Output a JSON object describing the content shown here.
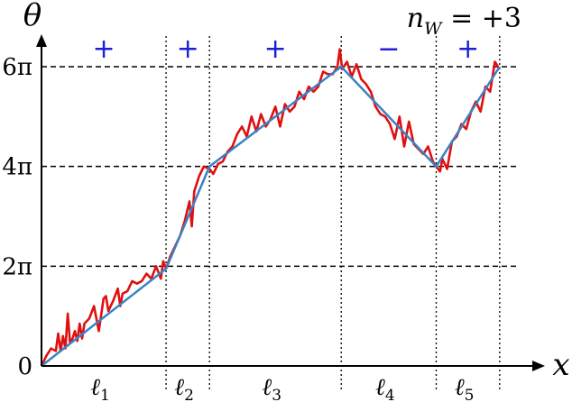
{
  "chart_data": {
    "type": "line",
    "xlabel": "x",
    "ylabel": "θ",
    "winding_label": "n_W = +3",
    "winding": {
      "lhs": "n",
      "sub": "W",
      "rhs": " = +3"
    },
    "y_ticks": [
      {
        "value": 0,
        "label": "0"
      },
      {
        "value": 2,
        "label": "2π"
      },
      {
        "value": 4,
        "label": "4π"
      },
      {
        "value": 6,
        "label": "6π"
      }
    ],
    "y_unit": "π",
    "ylim": [
      0,
      6.6
    ],
    "xlim": [
      0,
      1
    ],
    "boundaries": [
      0.261,
      0.352,
      0.628,
      0.827,
      0.96
    ],
    "segments": [
      {
        "name": "ℓ1",
        "base": "ℓ",
        "sub": "1",
        "sign": "+",
        "start": 0.0,
        "end": 0.261
      },
      {
        "name": "ℓ2",
        "base": "ℓ",
        "sub": "2",
        "sign": "+",
        "start": 0.261,
        "end": 0.352
      },
      {
        "name": "ℓ3",
        "base": "ℓ",
        "sub": "3",
        "sign": "+",
        "start": 0.352,
        "end": 0.628
      },
      {
        "name": "ℓ4",
        "base": "ℓ",
        "sub": "4",
        "sign": "−",
        "start": 0.628,
        "end": 0.827
      },
      {
        "name": "ℓ5",
        "base": "ℓ",
        "sub": "5",
        "sign": "+",
        "start": 0.827,
        "end": 0.96
      }
    ],
    "fit_line": {
      "x": [
        0.0,
        0.261,
        0.352,
        0.628,
        0.827,
        0.96
      ],
      "y": [
        0.0,
        1.95,
        4.0,
        6.0,
        4.0,
        6.0
      ]
    },
    "noisy_line": {
      "x": [
        0.0,
        0.01,
        0.02,
        0.03,
        0.035,
        0.04,
        0.045,
        0.05,
        0.055,
        0.06,
        0.065,
        0.07,
        0.075,
        0.08,
        0.085,
        0.09,
        0.1,
        0.11,
        0.12,
        0.13,
        0.135,
        0.14,
        0.15,
        0.16,
        0.165,
        0.17,
        0.18,
        0.19,
        0.2,
        0.21,
        0.22,
        0.23,
        0.24,
        0.25,
        0.255,
        0.261,
        0.27,
        0.28,
        0.29,
        0.3,
        0.31,
        0.315,
        0.32,
        0.33,
        0.34,
        0.352,
        0.36,
        0.37,
        0.38,
        0.39,
        0.4,
        0.41,
        0.42,
        0.43,
        0.44,
        0.45,
        0.46,
        0.47,
        0.48,
        0.49,
        0.5,
        0.51,
        0.52,
        0.53,
        0.54,
        0.55,
        0.56,
        0.57,
        0.58,
        0.59,
        0.6,
        0.61,
        0.62,
        0.625,
        0.63,
        0.64,
        0.65,
        0.66,
        0.67,
        0.68,
        0.69,
        0.7,
        0.71,
        0.72,
        0.73,
        0.74,
        0.75,
        0.76,
        0.77,
        0.78,
        0.79,
        0.8,
        0.81,
        0.82,
        0.827,
        0.835,
        0.84,
        0.85,
        0.86,
        0.87,
        0.88,
        0.89,
        0.9,
        0.91,
        0.92,
        0.93,
        0.94,
        0.95,
        0.96
      ],
      "y": [
        0.0,
        0.2,
        0.35,
        0.3,
        0.65,
        0.3,
        0.6,
        0.35,
        1.05,
        0.45,
        0.55,
        0.7,
        0.5,
        0.85,
        0.55,
        0.85,
        0.95,
        1.2,
        0.7,
        1.35,
        1.4,
        1.1,
        1.3,
        1.55,
        1.2,
        1.45,
        1.5,
        1.7,
        1.65,
        1.7,
        1.85,
        1.75,
        2.0,
        1.75,
        2.1,
        1.95,
        2.2,
        2.4,
        2.6,
        2.9,
        3.3,
        2.8,
        3.5,
        3.8,
        4.0,
        3.95,
        3.85,
        4.05,
        4.1,
        4.3,
        4.4,
        4.65,
        4.8,
        4.6,
        5.0,
        4.7,
        5.05,
        4.8,
        4.95,
        5.2,
        4.8,
        5.25,
        5.1,
        5.2,
        5.5,
        5.35,
        5.6,
        5.5,
        5.6,
        5.9,
        5.85,
        5.85,
        6.0,
        6.35,
        5.95,
        6.1,
        5.8,
        6.05,
        5.75,
        5.65,
        5.5,
        5.2,
        5.05,
        5.0,
        4.85,
        4.55,
        5.0,
        4.4,
        4.9,
        4.45,
        4.35,
        4.25,
        4.4,
        4.1,
        4.0,
        3.9,
        4.15,
        3.95,
        4.5,
        4.6,
        4.85,
        4.75,
        5.1,
        5.3,
        5.1,
        5.6,
        5.5,
        6.1,
        5.95
      ]
    },
    "colors": {
      "noisy": "#e01010",
      "fit": "#3b82c4",
      "sign": "#1f1fd6",
      "axis": "#000000"
    }
  }
}
